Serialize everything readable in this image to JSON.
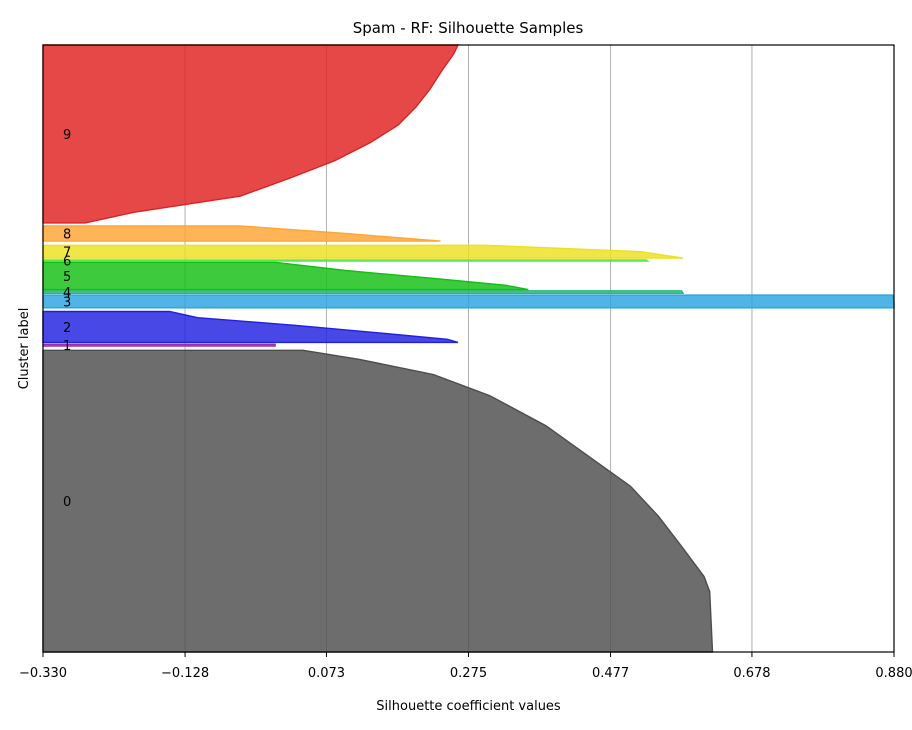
{
  "chart_data": {
    "type": "area",
    "title": "Spam - RF: Silhouette Samples",
    "xlabel": "Silhouette coefficient values",
    "ylabel": "Cluster label",
    "xlim": [
      -0.33,
      0.88
    ],
    "xticks": [
      -0.33,
      -0.128,
      0.073,
      0.275,
      0.477,
      0.678,
      0.88
    ],
    "xtick_labels": [
      "−0.330",
      "−0.128",
      "0.073",
      "0.275",
      "0.477",
      "0.678",
      "0.880"
    ],
    "grid": "vertical",
    "ylim": [
      0,
      1000
    ],
    "clusters": [
      {
        "label": "0",
        "color": "#4d4d4d",
        "y0": 0,
        "y1": 497,
        "profile": [
          [
            0,
            0.622
          ],
          [
            0.1,
            0.62
          ],
          [
            0.2,
            0.618
          ],
          [
            0.25,
            0.61
          ],
          [
            0.35,
            0.578
          ],
          [
            0.45,
            0.545
          ],
          [
            0.55,
            0.505
          ],
          [
            0.65,
            0.445
          ],
          [
            0.75,
            0.385
          ],
          [
            0.85,
            0.305
          ],
          [
            0.92,
            0.225
          ],
          [
            0.97,
            0.12
          ],
          [
            1,
            0.04
          ]
        ]
      },
      {
        "label": "1",
        "color": "#9b2ea5",
        "y0": 504,
        "y1": 507,
        "profile": [
          [
            0,
            0.0
          ],
          [
            1,
            0.0
          ]
        ]
      },
      {
        "label": "2",
        "color": "#2020e0",
        "y0": 510,
        "y1": 561,
        "profile": [
          [
            0,
            0.26
          ],
          [
            0.1,
            0.245
          ],
          [
            0.3,
            0.15
          ],
          [
            0.55,
            0.03
          ],
          [
            0.8,
            -0.11
          ],
          [
            1,
            -0.15
          ]
        ]
      },
      {
        "label": "3",
        "color": "#2aa3e0",
        "y0": 567,
        "y1": 588,
        "profile": [
          [
            0,
            0.88
          ],
          [
            0.5,
            0.88
          ],
          [
            1,
            0.878
          ]
        ]
      },
      {
        "label": "4",
        "color": "#2ab87a",
        "y0": 591,
        "y1": 595,
        "profile": [
          [
            0,
            0.58
          ],
          [
            1,
            0.578
          ]
        ]
      },
      {
        "label": "5",
        "color": "#12c012",
        "y0": 597,
        "y1": 642,
        "profile": [
          [
            0,
            0.36
          ],
          [
            0.15,
            0.33
          ],
          [
            0.4,
            0.23
          ],
          [
            0.7,
            0.1
          ],
          [
            1,
            0.0
          ]
        ]
      },
      {
        "label": "6",
        "color": "#58e858",
        "y0": 644,
        "y1": 646,
        "profile": [
          [
            0,
            0.53
          ],
          [
            1,
            0.528
          ]
        ]
      },
      {
        "label": "7",
        "color": "#eee020",
        "y0": 649,
        "y1": 670,
        "profile": [
          [
            0,
            0.58
          ],
          [
            0.5,
            0.52
          ],
          [
            1,
            0.3
          ]
        ]
      },
      {
        "label": "8",
        "color": "#ffa532",
        "y0": 677,
        "y1": 702,
        "profile": [
          [
            0,
            0.235
          ],
          [
            0.5,
            0.1
          ],
          [
            1,
            -0.05
          ]
        ]
      },
      {
        "label": "9",
        "color": "#e02020",
        "y0": 707,
        "y1": 1000,
        "profile": [
          [
            0,
            -0.27
          ],
          [
            0.06,
            -0.2
          ],
          [
            0.15,
            -0.05
          ],
          [
            0.25,
            0.02
          ],
          [
            0.35,
            0.085
          ],
          [
            0.45,
            0.135
          ],
          [
            0.55,
            0.175
          ],
          [
            0.65,
            0.2
          ],
          [
            0.75,
            0.22
          ],
          [
            0.85,
            0.236
          ],
          [
            0.95,
            0.254
          ],
          [
            1,
            0.26
          ]
        ]
      }
    ]
  }
}
